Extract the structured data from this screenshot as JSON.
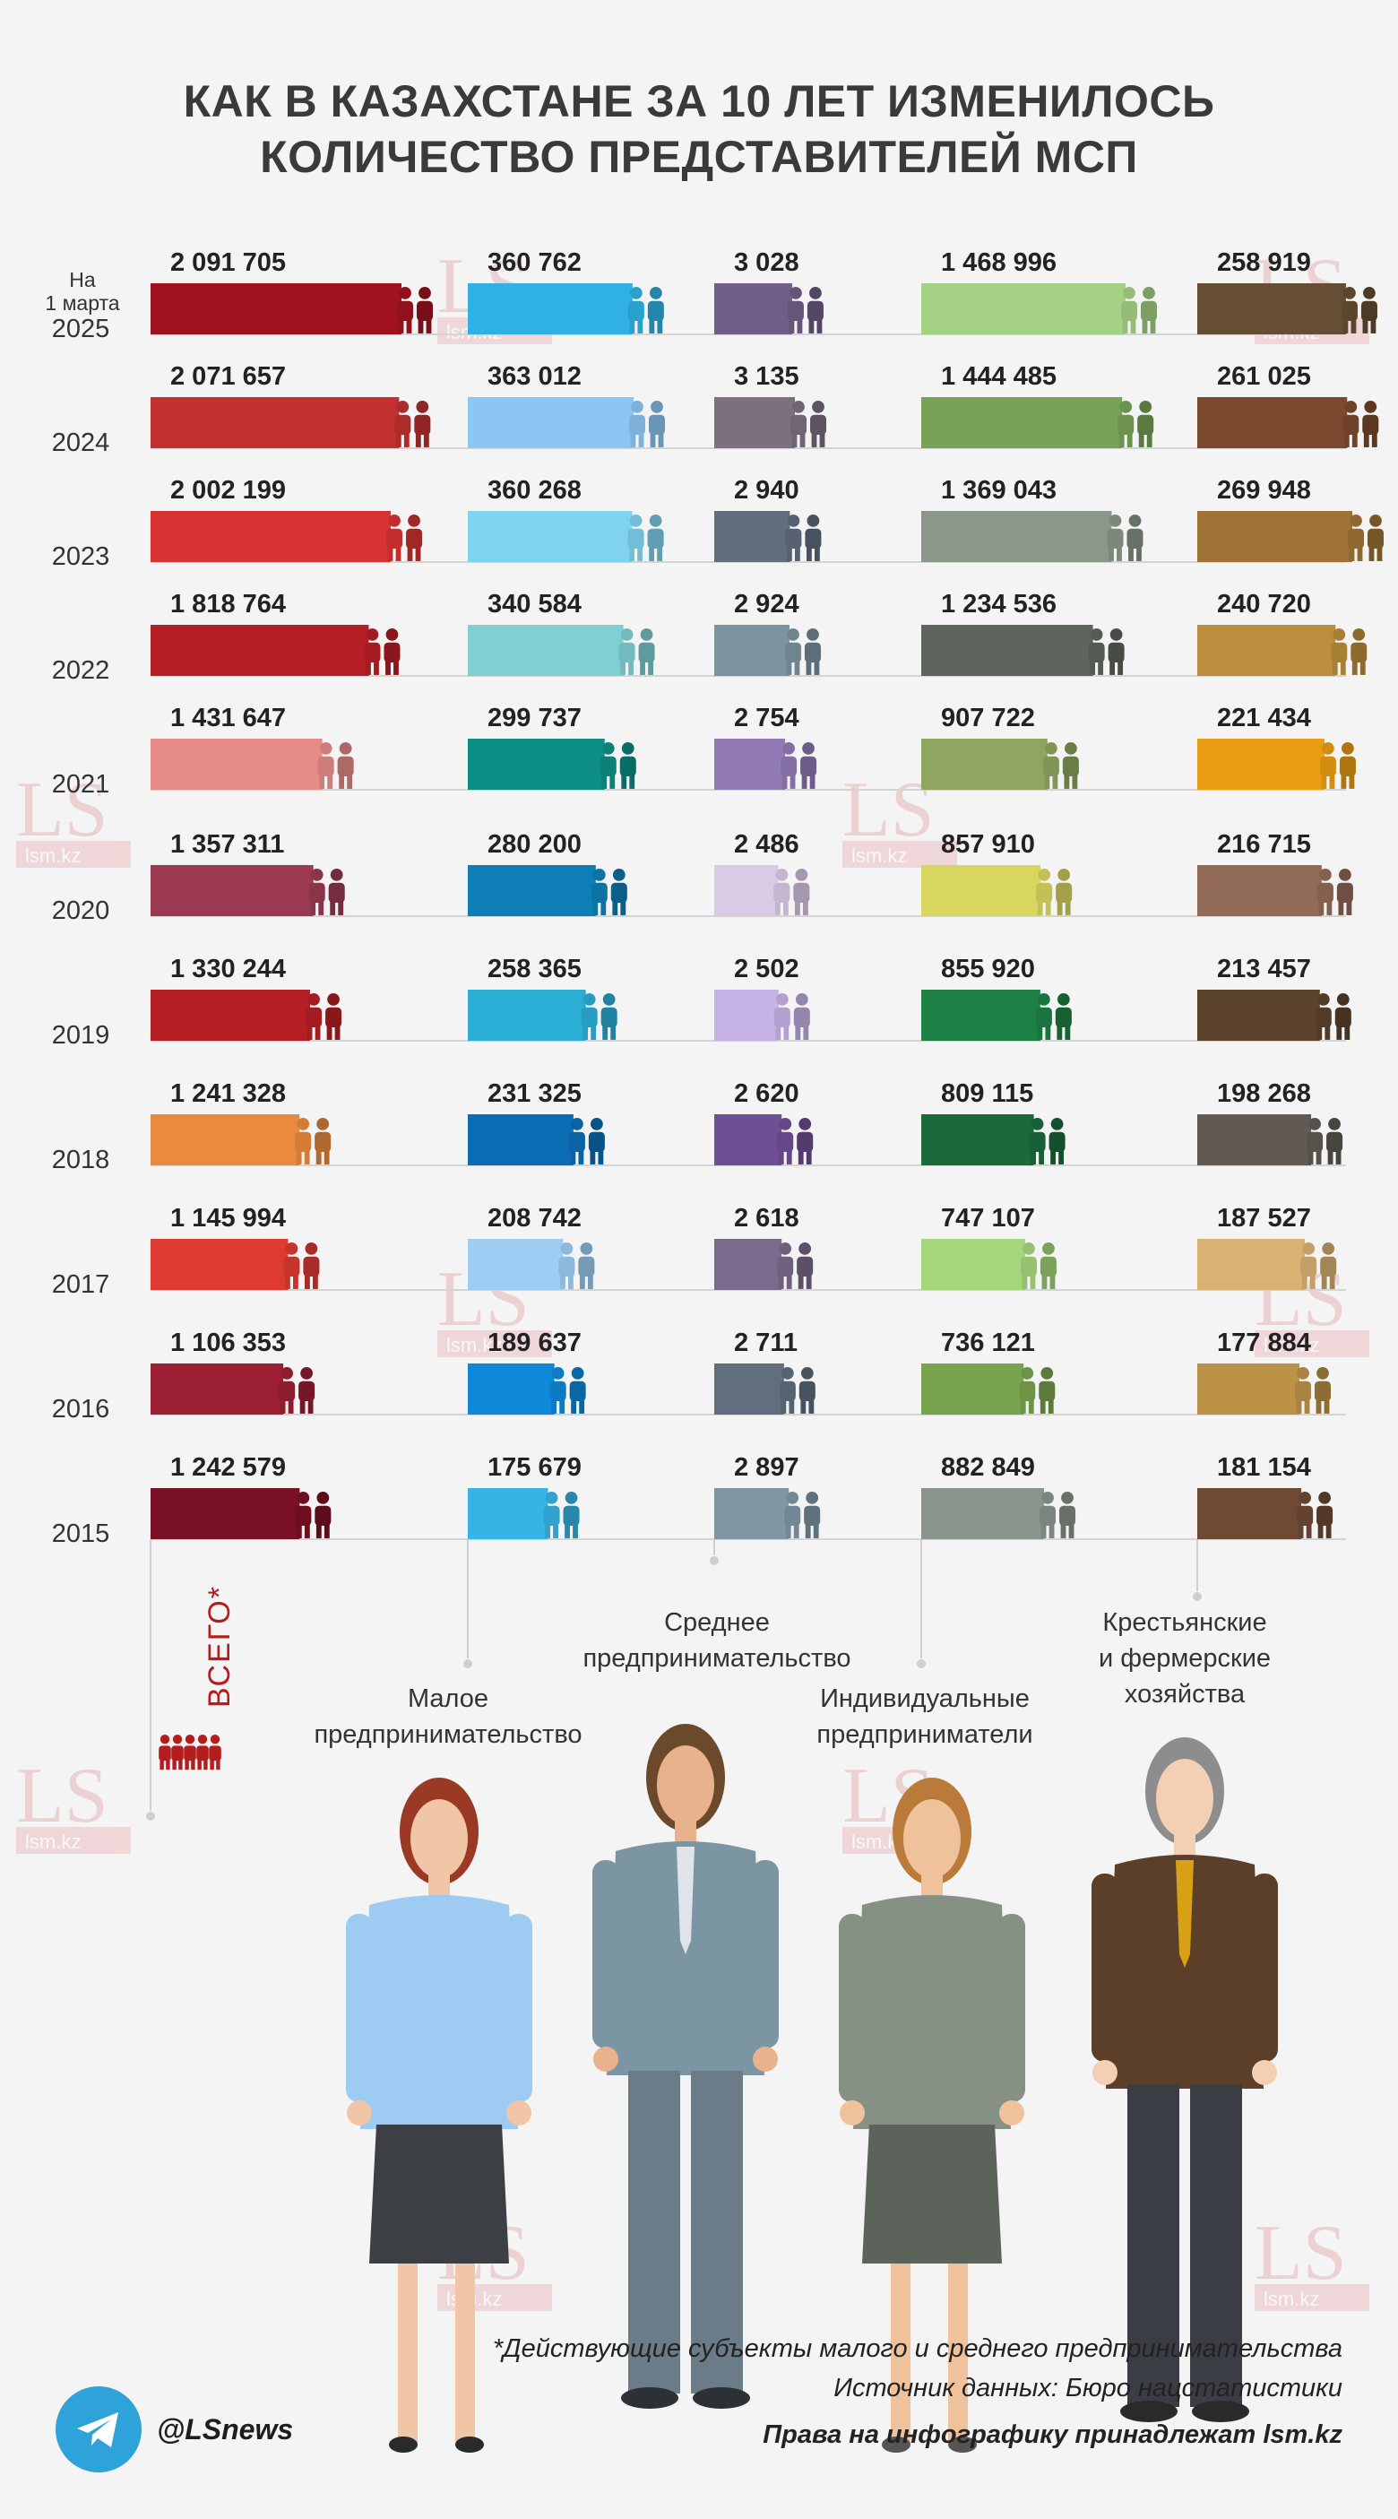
{
  "title": {
    "line1": "КАК В КАЗАХСТАНЕ ЗА 10 ЛЕТ ИЗМЕНИЛОСЬ",
    "line2": "КОЛИЧЕСТВО ПРЕДСТАВИТЕЛЕЙ МСП"
  },
  "first_row_prefix": [
    "На",
    "1 марта"
  ],
  "category_labels": {
    "total": "ВСЕГО*",
    "small": [
      "Малое",
      "предпринимательство"
    ],
    "medium": [
      "Среднее",
      "предпринимательство"
    ],
    "individual": [
      "Индивидуальные",
      "предприниматели"
    ],
    "farm": [
      "Крестьянские",
      "и фермерские",
      "хозяйства"
    ]
  },
  "footnotes": {
    "note": "*Действующие субъекты малого и среднего предпринимательства",
    "source": "Источник данных: Бюро нацстатистики",
    "rights": "Права на инфографику принадлежат lsm.kz"
  },
  "social": {
    "handle": "@LSnews",
    "icon": "telegram-icon"
  },
  "watermark": {
    "logo": "LS",
    "site": "lsm.kz"
  },
  "chart_data": {
    "type": "bar",
    "title": "КАК В КАЗАХСТАНЕ ЗА 10 ЛЕТ ИЗМЕНИЛОСЬ КОЛИЧЕСТВО ПРЕДСТАВИТЕЛЕЙ МСП",
    "orientation": "horizontal",
    "categories": [
      "2025",
      "2024",
      "2023",
      "2022",
      "2021",
      "2020",
      "2019",
      "2018",
      "2017",
      "2016",
      "2015"
    ],
    "grid": true,
    "series": [
      {
        "name": "ВСЕГО*",
        "labels": [
          "2 091 705",
          "2 071 657",
          "2 002 199",
          "1 818 764",
          "1 431 647",
          "1 357 311",
          "1 330 244",
          "1 241 328",
          "1 145 994",
          "1 106 353",
          "1 242 579"
        ],
        "values": [
          2091705,
          2071657,
          2002199,
          1818764,
          1431647,
          1357311,
          1330244,
          1241328,
          1145994,
          1106353,
          1242579
        ],
        "colors": [
          "#a0121f",
          "#c0312f",
          "#d63332",
          "#b61e25",
          "#e58c86",
          "#9b3a52",
          "#b61e25",
          "#e98a3e",
          "#dd3a31",
          "#9c1f33",
          "#7a1023"
        ]
      },
      {
        "name": "Малое предпринимательство",
        "labels": [
          "360 762",
          "363 012",
          "360 268",
          "340 584",
          "299 737",
          "280 200",
          "258 365",
          "231 325",
          "208 742",
          "189 637",
          "175 679"
        ],
        "values": [
          360762,
          363012,
          360268,
          340584,
          299737,
          280200,
          258365,
          231325,
          208742,
          189637,
          175679
        ],
        "colors": [
          "#2fb2e3",
          "#8cc6f3",
          "#7fd3ef",
          "#7fcfd3",
          "#0e8f86",
          "#0e7fb6",
          "#2aaed6",
          "#0b6eb5",
          "#9ecdf3",
          "#0e89da",
          "#36b4e5"
        ]
      },
      {
        "name": "Среднее предпринимательство",
        "labels": [
          "3 028",
          "3 135",
          "2 940",
          "2 924",
          "2 754",
          "2 486",
          "2 502",
          "2 620",
          "2 618",
          "2 711",
          "2 897"
        ],
        "values": [
          3028,
          3135,
          2940,
          2924,
          2754,
          2486,
          2502,
          2620,
          2618,
          2711,
          2897
        ],
        "colors": [
          "#6f5e86",
          "#7b7080",
          "#5f6d7d",
          "#7c93a0",
          "#927bb5",
          "#d9cbe6",
          "#c7b2e6",
          "#6f4f93",
          "#7a6b8c",
          "#606e7e",
          "#7f97a4"
        ]
      },
      {
        "name": "Индивидуальные предприниматели",
        "labels": [
          "1 468 996",
          "1 444 485",
          "1 369 043",
          "1 234 536",
          "907 722",
          "857 910",
          "855 920",
          "809 115",
          "747 107",
          "736 121",
          "882 849"
        ],
        "values": [
          1468996,
          1444485,
          1369043,
          1234536,
          907722,
          857910,
          855920,
          809115,
          747107,
          736121,
          882849
        ],
        "colors": [
          "#a6d285",
          "#78a356",
          "#8a978a",
          "#5e655c",
          "#8ea65f",
          "#d9d65f",
          "#1e8045",
          "#1a6a3a",
          "#a6d67c",
          "#7aa34e",
          "#8a958c"
        ]
      },
      {
        "name": "Крестьянские и фермерские хозяйства",
        "labels": [
          "258 919",
          "261 025",
          "269 948",
          "240 720",
          "221 434",
          "216 715",
          "213 457",
          "198 268",
          "187 527",
          "177 884",
          "181 154"
        ],
        "values": [
          258919,
          261025,
          269948,
          240720,
          221434,
          216715,
          213457,
          198268,
          187527,
          177884,
          181154
        ],
        "colors": [
          "#654e33",
          "#7b4a2e",
          "#9e7335",
          "#ba8e3c",
          "#ea9d12",
          "#916b58",
          "#5c432b",
          "#605a53",
          "#d9b273",
          "#bc9148",
          "#6e4a34"
        ]
      }
    ]
  }
}
